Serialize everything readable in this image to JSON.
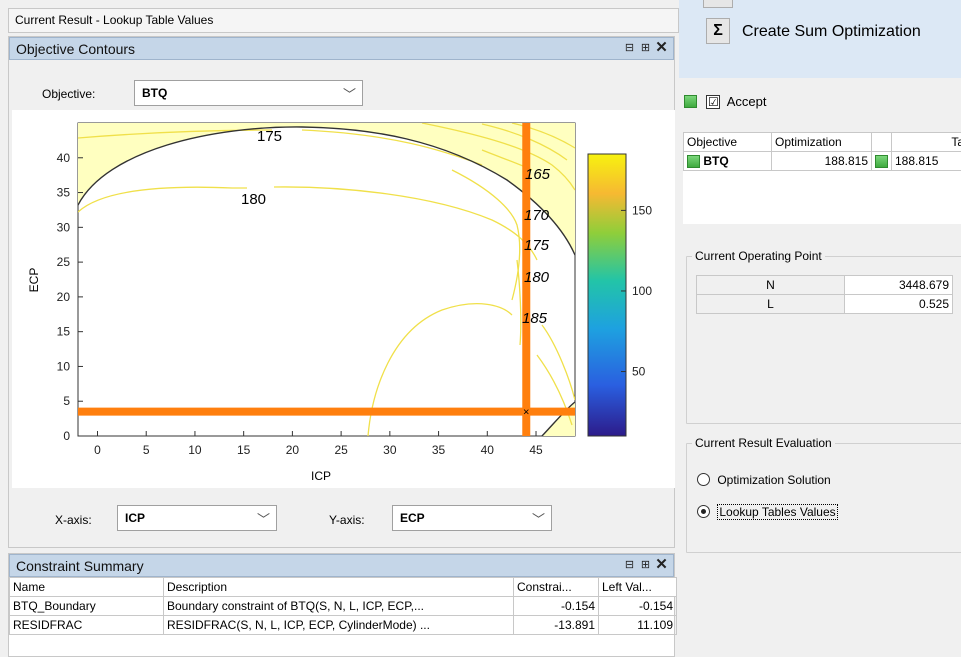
{
  "window": {
    "current_result_title": "Current Result - Lookup Table Values"
  },
  "objective_panel": {
    "title": "Objective Contours",
    "objective_label": "Objective:",
    "objective_value": "BTQ",
    "x_axis_label": "X-axis:",
    "x_axis_value": "ICP",
    "y_axis_label": "Y-axis:",
    "y_axis_value": "ECP"
  },
  "panel_buttons": {
    "float": "⊟",
    "dock": "⊞",
    "close": "✕"
  },
  "chart_data": {
    "type": "contour",
    "xlabel": "ICP",
    "ylabel": "ECP",
    "xlim": [
      -2,
      49
    ],
    "ylim": [
      0,
      45
    ],
    "x_ticks": [
      "0",
      "5",
      "10",
      "15",
      "20",
      "25",
      "30",
      "35",
      "40",
      "45"
    ],
    "y_ticks": [
      "0",
      "5",
      "10",
      "15",
      "20",
      "25",
      "30",
      "35",
      "40"
    ],
    "contour_labels": [
      "175",
      "180",
      "165",
      "170",
      "175",
      "180",
      "185"
    ],
    "colorbar_ticks": [
      "50",
      "100",
      "150"
    ],
    "colorbar_range": [
      10,
      185
    ],
    "crosshair": {
      "x": 44,
      "y": 3.5
    },
    "colors": {
      "constraint_line": "#ff7f0e",
      "boundary": "#333333",
      "infeasible_fill": "#ffffc0",
      "contour": "#f0e04a"
    }
  },
  "constraint_summary": {
    "title": "Constraint Summary",
    "columns": [
      "Name",
      "Description",
      "Constrai...",
      "Left Val..."
    ],
    "rows": [
      [
        "BTQ_Boundary",
        "Boundary constraint of BTQ(S, N, L, ICP, ECP,...",
        "-0.154",
        "-0.154"
      ],
      [
        "RESIDFRAC",
        "RESIDFRAC(S, N, L, ICP, ECP, CylinderMode) ...",
        "-13.891",
        "11.109"
      ]
    ]
  },
  "right": {
    "sum_button_icon": "Σ",
    "sum_button_label": "Create Sum Optimization",
    "accept_label": "Accept",
    "accept_checked": "☑",
    "objective_table": {
      "columns": [
        "Objective",
        "Optimization",
        "",
        "Table"
      ],
      "rows": [
        [
          "BTQ",
          "188.815",
          "",
          "188.815"
        ]
      ]
    },
    "operating_point": {
      "title": "Current Operating Point",
      "rows": [
        [
          "N",
          "3448.679"
        ],
        [
          "L",
          "0.525"
        ]
      ]
    },
    "evaluation": {
      "title": "Current Result Evaluation",
      "options": [
        "Optimization Solution",
        "Lookup Tables Values"
      ],
      "selected": "Lookup Tables Values"
    }
  }
}
